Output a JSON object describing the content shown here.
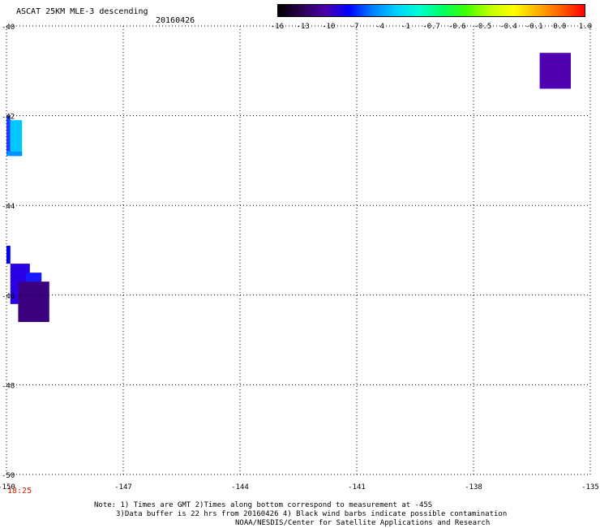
{
  "header": {
    "title": "ASCAT 25KM MLE-3 descending",
    "date": "20160426"
  },
  "colorbar": {
    "colors": [
      "#000000",
      "#2a0052",
      "#4a00a8",
      "#0000ff",
      "#0080ff",
      "#00d0ff",
      "#00ffd0",
      "#00ff60",
      "#40ff00",
      "#c0ff00",
      "#ffff00",
      "#ffb000",
      "#ff6000",
      "#ff0000"
    ],
    "tick_labels": [
      "-16",
      "-13",
      "-10",
      "-7",
      "-4",
      "-1",
      "-0.7",
      "-0.6",
      "-0.5",
      "-0.4",
      "-0.1",
      "0.0",
      "1.0"
    ]
  },
  "map": {
    "lat_labels": [
      "-40",
      "-42",
      "-44",
      "-46",
      "-48",
      "-50"
    ],
    "lon_labels": [
      "-150",
      "-147",
      "-144",
      "-141",
      "-138",
      "-135"
    ],
    "lat_range": [
      -50,
      -40
    ],
    "lon_range": [
      -150,
      -135
    ],
    "cells": [
      {
        "lon": -150.0,
        "lat_top": -42.0,
        "lon_end": -149.9,
        "lat_bottom": -42.8,
        "color": "#1a40ff"
      },
      {
        "lon": -149.9,
        "lat_top": -42.1,
        "lon_end": -149.6,
        "lat_bottom": -42.9,
        "color": "#00c8ff"
      },
      {
        "lon": -150.0,
        "lat_top": -42.8,
        "lon_end": -149.6,
        "lat_bottom": -42.9,
        "color": "#0090ff"
      },
      {
        "lon": -150.0,
        "lat_top": -44.9,
        "lon_end": -149.9,
        "lat_bottom": -45.3,
        "color": "#0000ff"
      },
      {
        "lon": -149.9,
        "lat_top": -45.3,
        "lon_end": -149.4,
        "lat_bottom": -46.2,
        "color": "#2a00e8"
      },
      {
        "lon": -149.5,
        "lat_top": -45.5,
        "lon_end": -149.1,
        "lat_bottom": -46.0,
        "color": "#1818ff"
      },
      {
        "lon": -149.7,
        "lat_top": -45.7,
        "lon_end": -148.9,
        "lat_bottom": -46.6,
        "color": "#3a0080"
      },
      {
        "lon": -136.3,
        "lat_top": -40.6,
        "lon_end": -135.5,
        "lat_bottom": -41.4,
        "color": "#5000b0"
      }
    ]
  },
  "time_label": "18:25",
  "notes": [
    "Note: 1) Times are GMT 2)Times along bottom correspond to measurement at -45S",
    "3)Data buffer is 22 hrs from 20160426 4) Black wind barbs indicate possible contamination",
    "NOAA/NESDIS/Center for Satellite Applications and Research"
  ]
}
